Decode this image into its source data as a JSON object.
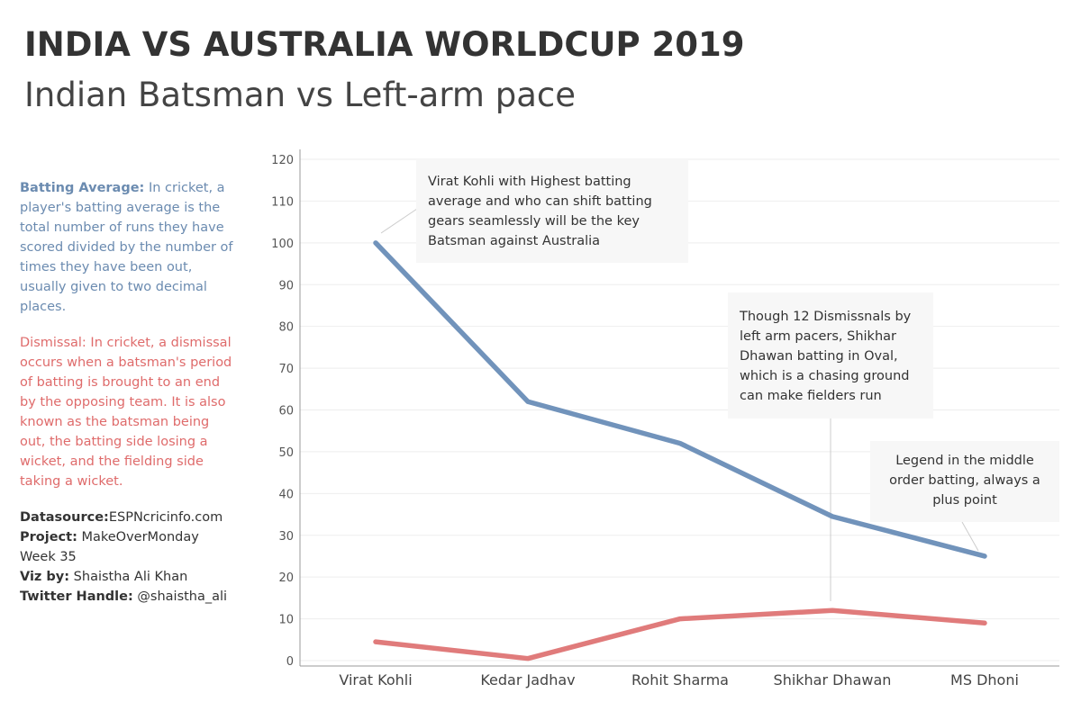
{
  "header": {
    "title": "INDIA VS AUSTRALIA WORLDCUP 2019",
    "subtitle": "Indian Batsman vs Left-arm pace"
  },
  "sidebar": {
    "batting_term": "Batting Average:",
    "batting_text": " In cricket, a player's batting average is the total number of runs they have scored divided by the number of times they have been out, usually given to two decimal places.",
    "dismissal_text": "Dismissal: In cricket, a dismissal occurs when a batsman's period of batting is brought to an end by the opposing team. It is also known as the batsman being out, the batting side losing a wicket, and the fielding side taking a wicket.",
    "credits": {
      "datasource_label": "Datasource:",
      "datasource_value": "ESPNcricinfo.com",
      "project_label": "Project:",
      "project_value": " MakeOverMonday",
      "week": "Week 35",
      "vizby_label": "Viz by:",
      "vizby_value": " Shaistha Ali Khan",
      "twitter_label": "Twitter Handle:",
      "twitter_value": " @shaistha_ali"
    }
  },
  "chart_data": {
    "type": "line",
    "categories": [
      "Virat Kohli",
      "Kedar Jadhav",
      "Rohit Sharma",
      "Shikhar Dhawan",
      "MS Dhoni"
    ],
    "series": [
      {
        "values": [
          100,
          62,
          52,
          34.5,
          25
        ],
        "color": "#7193bb"
      },
      {
        "values": [
          4.5,
          0.5,
          10,
          12,
          9
        ],
        "color": "#e07b7b"
      }
    ],
    "ylim": [
      0,
      120
    ],
    "yticks": [
      0,
      10,
      20,
      30,
      40,
      50,
      60,
      70,
      80,
      90,
      100,
      110,
      120
    ],
    "xlabel": "",
    "ylabel": "",
    "grid": true,
    "annotations": [
      {
        "category": "Virat Kohli",
        "series": 0,
        "lines": [
          "Virat Kohli with Highest batting",
          "average and who can shift batting",
          "gears seamlessly will be the key",
          "Batsman against Australia"
        ]
      },
      {
        "category": "Shikhar Dhawan",
        "series": 1,
        "lines": [
          "Though 12 Dismissnals by",
          "left arm pacers, Shikhar",
          "Dhawan batting in Oval,",
          "which is a chasing ground",
          "can make fielders run"
        ]
      },
      {
        "category": "MS Dhoni",
        "series": 0,
        "lines": [
          "Legend in the middle",
          "order batting, always a",
          "plus point"
        ]
      }
    ]
  }
}
